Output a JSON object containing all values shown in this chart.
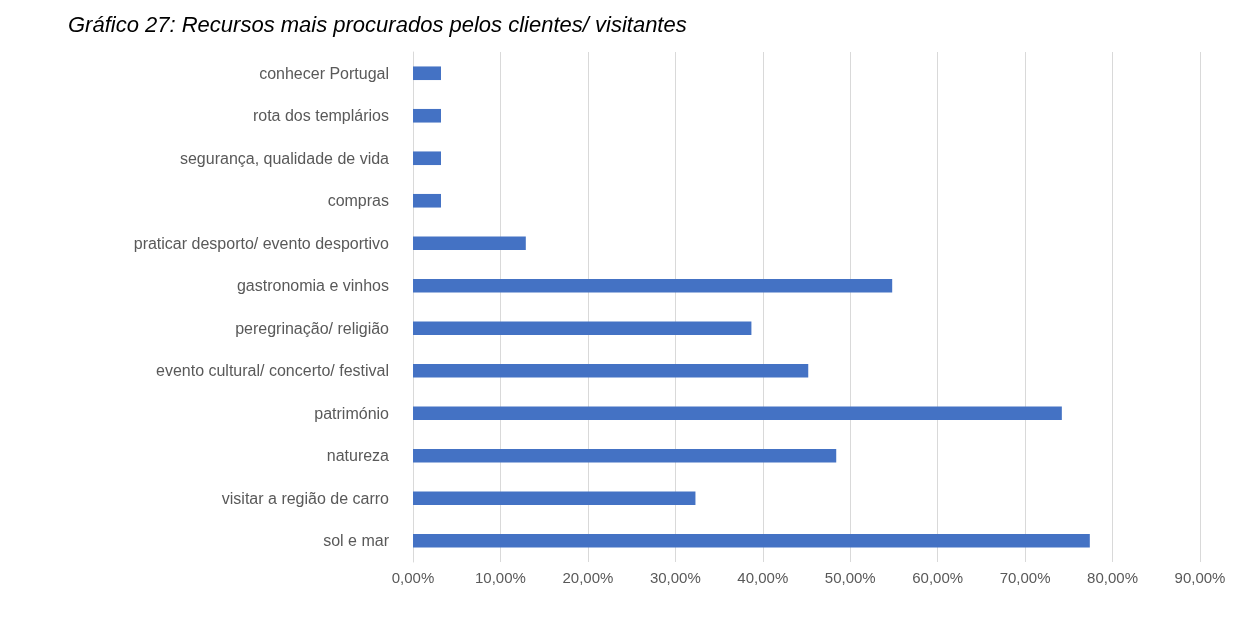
{
  "chart_data": {
    "type": "bar",
    "orientation": "horizontal",
    "title": "Gráfico 27: Recursos mais procurados pelos clientes/ visitantes",
    "categories": [
      "conhecer Portugal",
      "rota dos templários",
      "segurança, qualidade de vida",
      "compras",
      "praticar desporto/ evento desportivo",
      "gastronomia e vinhos",
      "peregrinação/ religião",
      "evento cultural/ concerto/ festival",
      "património",
      "natureza",
      "visitar a região de carro",
      "sol e mar"
    ],
    "values": [
      3.2,
      3.2,
      3.2,
      3.2,
      12.9,
      54.8,
      38.7,
      45.2,
      74.2,
      48.4,
      32.3,
      77.4
    ],
    "color": "#4472c4",
    "xlim": [
      0,
      90
    ],
    "xticks": [
      {
        "value": 0,
        "label": "0,00%"
      },
      {
        "value": 10,
        "label": "10,00%"
      },
      {
        "value": 20,
        "label": "20,00%"
      },
      {
        "value": 30,
        "label": "30,00%"
      },
      {
        "value": 40,
        "label": "40,00%"
      },
      {
        "value": 50,
        "label": "50,00%"
      },
      {
        "value": 60,
        "label": "60,00%"
      },
      {
        "value": 70,
        "label": "70,00%"
      },
      {
        "value": 80,
        "label": "80,00%"
      },
      {
        "value": 90,
        "label": "90,00%"
      }
    ],
    "grid": "x"
  }
}
